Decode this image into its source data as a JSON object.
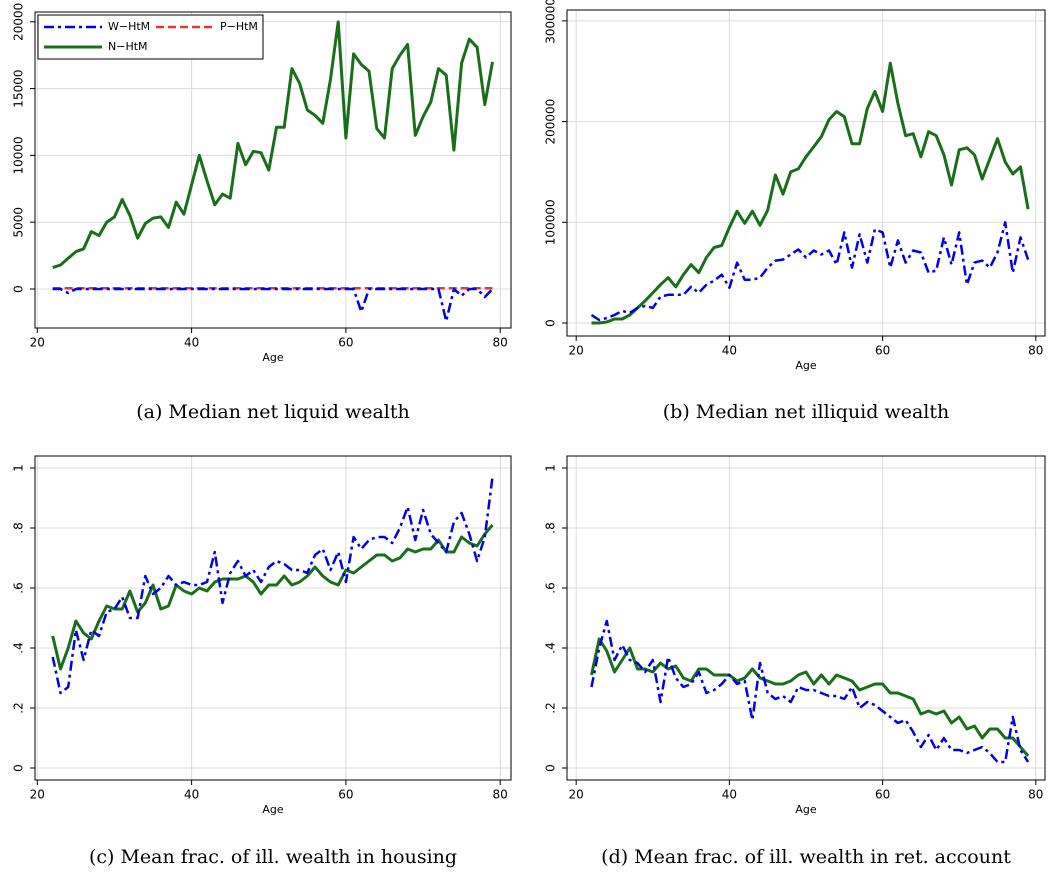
{
  "chart_data": [
    {
      "type": "line",
      "caption": "(a) Median net liquid wealth",
      "xlabel": "Age",
      "grid": true,
      "legend": "top-left",
      "x": [
        22,
        23,
        24,
        25,
        26,
        27,
        28,
        29,
        30,
        31,
        32,
        33,
        34,
        35,
        36,
        37,
        38,
        39,
        40,
        41,
        42,
        43,
        44,
        45,
        46,
        47,
        48,
        49,
        50,
        51,
        52,
        53,
        54,
        55,
        56,
        57,
        58,
        59,
        60,
        61,
        62,
        63,
        64,
        65,
        66,
        67,
        68,
        69,
        70,
        71,
        72,
        73,
        74,
        75,
        76,
        77,
        78,
        79
      ],
      "xlim": [
        19.7,
        81.4
      ],
      "xticks": [
        20,
        40,
        60,
        80
      ],
      "ylim": [
        -2919,
        20733
      ],
      "yticks": [
        0,
        5000,
        10000,
        15000,
        20000
      ],
      "series": [
        {
          "name": "W−HtM",
          "color": "#0000ee",
          "style": "dashdot",
          "values": [
            0,
            0,
            -300,
            0,
            0,
            0,
            0,
            0,
            0,
            0,
            0,
            0,
            0,
            0,
            0,
            0,
            0,
            0,
            0,
            0,
            0,
            0,
            0,
            0,
            0,
            0,
            0,
            0,
            0,
            0,
            0,
            0,
            0,
            0,
            0,
            0,
            0,
            0,
            0,
            0,
            -1700,
            0,
            0,
            0,
            0,
            0,
            0,
            0,
            0,
            0,
            0,
            -2400,
            0,
            -500,
            0,
            0,
            -600,
            0
          ]
        },
        {
          "name": "P−HtM",
          "color": "#ee3333",
          "style": "dash",
          "values": [
            50,
            50,
            50,
            50,
            50,
            50,
            50,
            50,
            50,
            50,
            50,
            50,
            50,
            50,
            50,
            50,
            50,
            50,
            50,
            50,
            50,
            50,
            50,
            50,
            50,
            50,
            50,
            50,
            50,
            50,
            50,
            50,
            50,
            50,
            50,
            50,
            50,
            50,
            50,
            50,
            50,
            50,
            50,
            50,
            50,
            50,
            50,
            50,
            50,
            50,
            50,
            50,
            50,
            50,
            50,
            50,
            50,
            50
          ]
        },
        {
          "name": "N−HtM",
          "color": "#1a6e1a",
          "style": "solid",
          "values": [
            1600,
            1800,
            2300,
            2800,
            3000,
            4300,
            4000,
            5000,
            5400,
            6700,
            5500,
            3800,
            4900,
            5300,
            5400,
            4600,
            6500,
            5600,
            7800,
            10000,
            8100,
            6300,
            7100,
            6800,
            10900,
            9300,
            10300,
            10200,
            8900,
            12100,
            12100,
            16500,
            15400,
            13400,
            13000,
            12400,
            15700,
            20000,
            11300,
            17600,
            16800,
            16300,
            12000,
            11300,
            16500,
            17500,
            18300,
            11500,
            12900,
            14000,
            16500,
            16000,
            10400,
            16900,
            18700,
            18100,
            13800,
            17000
          ]
        }
      ]
    },
    {
      "type": "line",
      "caption": "(b) Median net illiquid wealth",
      "xlabel": "Age",
      "grid": true,
      "x": [
        22,
        23,
        24,
        25,
        26,
        27,
        28,
        29,
        30,
        31,
        32,
        33,
        34,
        35,
        36,
        37,
        38,
        39,
        40,
        41,
        42,
        43,
        44,
        45,
        46,
        47,
        48,
        49,
        50,
        51,
        52,
        53,
        54,
        55,
        56,
        57,
        58,
        59,
        60,
        61,
        62,
        63,
        64,
        65,
        66,
        67,
        68,
        69,
        70,
        71,
        72,
        73,
        74,
        75,
        76,
        77,
        78,
        79
      ],
      "xlim": [
        18.8,
        81.2
      ],
      "xticks": [
        20,
        40,
        60,
        80
      ],
      "ylim": [
        -12900,
        310800
      ],
      "yticks": [
        0,
        100000,
        200000,
        300000
      ],
      "series": [
        {
          "color": "#0000ee",
          "style": "dashdot",
          "values": [
            8000,
            3000,
            5000,
            8000,
            12000,
            10000,
            15000,
            17000,
            15000,
            26000,
            28000,
            28000,
            28000,
            36000,
            30000,
            38000,
            42000,
            48000,
            35000,
            60000,
            43000,
            43000,
            45000,
            55000,
            62000,
            63000,
            68000,
            73000,
            65000,
            72000,
            68000,
            72000,
            58000,
            90000,
            55000,
            88000,
            60000,
            93000,
            90000,
            55000,
            82000,
            60000,
            72000,
            70000,
            50000,
            52000,
            85000,
            58000,
            90000,
            38000,
            60000,
            62000,
            55000,
            70000,
            100000,
            50000,
            85000,
            63000
          ]
        },
        {
          "color": "#1a6e1a",
          "style": "solid",
          "values": [
            0,
            0,
            1000,
            4000,
            4000,
            8000,
            15000,
            22000,
            30000,
            38000,
            45000,
            36000,
            48000,
            58000,
            50000,
            65000,
            75000,
            77000,
            95000,
            111000,
            99000,
            111000,
            97000,
            112000,
            147000,
            128000,
            150000,
            153000,
            165000,
            175000,
            185000,
            202000,
            210000,
            205000,
            178000,
            178000,
            213000,
            230000,
            210000,
            258000,
            218000,
            186000,
            188000,
            165000,
            190000,
            186000,
            167000,
            137000,
            172000,
            174000,
            167000,
            143000,
            163000,
            183000,
            160000,
            148000,
            155000,
            113000
          ]
        }
      ]
    },
    {
      "type": "line",
      "caption": "(c) Mean frac. of ill. wealth in housing",
      "xlabel": "Age",
      "grid": true,
      "x": [
        22,
        23,
        24,
        25,
        26,
        27,
        28,
        29,
        30,
        31,
        32,
        33,
        34,
        35,
        36,
        37,
        38,
        39,
        40,
        41,
        42,
        43,
        44,
        45,
        46,
        47,
        48,
        49,
        50,
        51,
        52,
        53,
        54,
        55,
        56,
        57,
        58,
        59,
        60,
        61,
        62,
        63,
        64,
        65,
        66,
        67,
        68,
        69,
        70,
        71,
        72,
        73,
        74,
        75,
        76,
        77,
        78,
        79
      ],
      "xlim": [
        19.7,
        81.4
      ],
      "xticks": [
        20,
        40,
        60,
        80
      ],
      "ylim": [
        -0.04,
        1.04
      ],
      "yticks": [
        0,
        {
          "value": 0.2,
          "label": ".2"
        },
        {
          "value": 0.4,
          "label": ".4"
        },
        {
          "value": 0.6,
          "label": ".6"
        },
        {
          "value": 0.8,
          "label": ".8"
        },
        1
      ],
      "series": [
        {
          "color": "#0000ee",
          "style": "dashdot",
          "values": [
            0.37,
            0.25,
            0.27,
            0.46,
            0.36,
            0.46,
            0.44,
            0.52,
            0.53,
            0.57,
            0.5,
            0.5,
            0.64,
            0.58,
            0.6,
            0.64,
            0.61,
            0.62,
            0.61,
            0.61,
            0.62,
            0.72,
            0.55,
            0.65,
            0.69,
            0.64,
            0.66,
            0.62,
            0.67,
            0.69,
            0.68,
            0.66,
            0.66,
            0.65,
            0.71,
            0.73,
            0.66,
            0.72,
            0.62,
            0.77,
            0.73,
            0.76,
            0.77,
            0.77,
            0.75,
            0.8,
            0.87,
            0.76,
            0.86,
            0.78,
            0.75,
            0.72,
            0.82,
            0.85,
            0.78,
            0.69,
            0.77,
            0.97
          ]
        },
        {
          "color": "#1a6e1a",
          "style": "solid",
          "values": [
            0.44,
            0.33,
            0.4,
            0.49,
            0.45,
            0.43,
            0.49,
            0.54,
            0.53,
            0.53,
            0.59,
            0.52,
            0.55,
            0.61,
            0.53,
            0.54,
            0.61,
            0.59,
            0.58,
            0.6,
            0.59,
            0.62,
            0.63,
            0.63,
            0.63,
            0.64,
            0.62,
            0.58,
            0.61,
            0.61,
            0.64,
            0.61,
            0.62,
            0.64,
            0.67,
            0.64,
            0.62,
            0.61,
            0.66,
            0.65,
            0.67,
            0.69,
            0.71,
            0.71,
            0.69,
            0.7,
            0.73,
            0.72,
            0.73,
            0.73,
            0.76,
            0.72,
            0.72,
            0.77,
            0.75,
            0.74,
            0.78,
            0.81
          ]
        }
      ]
    },
    {
      "type": "line",
      "caption": "(d) Mean frac. of ill. wealth in ret. account",
      "xlabel": "Age",
      "grid": true,
      "x": [
        22,
        23,
        24,
        25,
        26,
        27,
        28,
        29,
        30,
        31,
        32,
        33,
        34,
        35,
        36,
        37,
        38,
        39,
        40,
        41,
        42,
        43,
        44,
        45,
        46,
        47,
        48,
        49,
        50,
        51,
        52,
        53,
        54,
        55,
        56,
        57,
        58,
        59,
        60,
        61,
        62,
        63,
        64,
        65,
        66,
        67,
        68,
        69,
        70,
        71,
        72,
        73,
        74,
        75,
        76,
        77,
        78,
        79
      ],
      "xlim": [
        18.8,
        81.2
      ],
      "xticks": [
        20,
        40,
        60,
        80
      ],
      "ylim": [
        -0.04,
        1.04
      ],
      "yticks": [
        0,
        {
          "value": 0.2,
          "label": ".2"
        },
        {
          "value": 0.4,
          "label": ".4"
        },
        {
          "value": 0.6,
          "label": ".6"
        },
        {
          "value": 0.8,
          "label": ".8"
        },
        1
      ],
      "series": [
        {
          "color": "#0000ee",
          "style": "dashdot",
          "values": [
            0.27,
            0.4,
            0.49,
            0.36,
            0.41,
            0.36,
            0.35,
            0.32,
            0.36,
            0.22,
            0.37,
            0.3,
            0.27,
            0.28,
            0.32,
            0.25,
            0.26,
            0.28,
            0.31,
            0.28,
            0.29,
            0.16,
            0.35,
            0.25,
            0.23,
            0.24,
            0.22,
            0.27,
            0.26,
            0.26,
            0.25,
            0.24,
            0.24,
            0.23,
            0.27,
            0.2,
            0.22,
            0.21,
            0.19,
            0.17,
            0.15,
            0.16,
            0.12,
            0.07,
            0.11,
            0.06,
            0.1,
            0.06,
            0.06,
            0.05,
            0.06,
            0.07,
            0.05,
            0.02,
            0.02,
            0.17,
            0.06,
            0.02
          ]
        },
        {
          "color": "#1a6e1a",
          "style": "solid",
          "values": [
            0.31,
            0.43,
            0.39,
            0.32,
            0.36,
            0.4,
            0.33,
            0.33,
            0.32,
            0.35,
            0.33,
            0.34,
            0.3,
            0.29,
            0.33,
            0.33,
            0.31,
            0.31,
            0.31,
            0.29,
            0.3,
            0.33,
            0.3,
            0.29,
            0.28,
            0.28,
            0.29,
            0.31,
            0.32,
            0.28,
            0.31,
            0.28,
            0.31,
            0.3,
            0.29,
            0.26,
            0.27,
            0.28,
            0.28,
            0.25,
            0.25,
            0.24,
            0.23,
            0.18,
            0.19,
            0.18,
            0.19,
            0.15,
            0.17,
            0.13,
            0.14,
            0.1,
            0.13,
            0.13,
            0.1,
            0.1,
            0.07,
            0.04
          ]
        }
      ]
    }
  ]
}
